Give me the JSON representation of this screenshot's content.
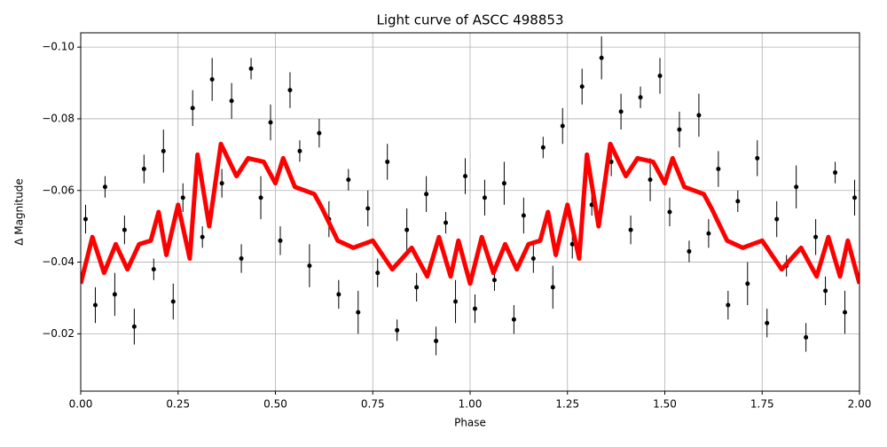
{
  "chart_data": {
    "type": "scatter",
    "title": "Light curve of ASCC 498853",
    "xlabel": "Phase",
    "ylabel": "Δ Magnitude",
    "xlim": [
      0,
      2
    ],
    "ylim": [
      -0.004,
      -0.104
    ],
    "grid": true,
    "xticks": [
      {
        "value": 0,
        "label": "0.00"
      },
      {
        "value": 0.25,
        "label": "0.25"
      },
      {
        "value": 0.5,
        "label": "0.50"
      },
      {
        "value": 0.75,
        "label": "0.75"
      },
      {
        "value": 1,
        "label": "1.00"
      },
      {
        "value": 1.25,
        "label": "1.25"
      },
      {
        "value": 1.5,
        "label": "1.50"
      },
      {
        "value": 1.75,
        "label": "1.75"
      },
      {
        "value": 2,
        "label": "2.00"
      }
    ],
    "yticks": [
      {
        "value": -0.02,
        "label": "−0.02"
      },
      {
        "value": -0.04,
        "label": "−0.04"
      },
      {
        "value": -0.06,
        "label": "−0.06"
      },
      {
        "value": -0.08,
        "label": "−0.08"
      },
      {
        "value": -0.1,
        "label": "−0.10"
      }
    ],
    "series": [
      {
        "type": "errorbar",
        "color": "#000000",
        "x": [
          0.0125,
          0.0375,
          0.0625,
          0.0875,
          0.1125,
          0.1375,
          0.1625,
          0.1875,
          0.2125,
          0.2375,
          0.2625,
          0.2875,
          0.3125,
          0.3375,
          0.3625,
          0.3875,
          0.4125,
          0.4375,
          0.4625,
          0.4875,
          0.5125,
          0.5375,
          0.5625,
          0.5875,
          0.6125,
          0.6375,
          0.6625,
          0.6875,
          0.7125,
          0.7375,
          0.7625,
          0.7875,
          0.8125,
          0.8375,
          0.8625,
          0.8875,
          0.9125,
          0.9375,
          0.9625,
          0.9875,
          1.0125,
          1.0375,
          1.0625,
          1.0875,
          1.1125,
          1.1375,
          1.1625,
          1.1875,
          1.2125,
          1.2375,
          1.2625,
          1.2875,
          1.3125,
          1.3375,
          1.3625,
          1.3875,
          1.4125,
          1.4375,
          1.4625,
          1.4875,
          1.5125,
          1.5375,
          1.5625,
          1.5875,
          1.6125,
          1.6375,
          1.6625,
          1.6875,
          1.7125,
          1.7375,
          1.7625,
          1.7875,
          1.8125,
          1.8375,
          1.8625,
          1.8875,
          1.9125,
          1.9375,
          1.9625,
          1.9875
        ],
        "values": [
          -0.052,
          -0.028,
          -0.061,
          -0.031,
          -0.049,
          -0.022,
          -0.066,
          -0.038,
          -0.071,
          -0.029,
          -0.058,
          -0.083,
          -0.047,
          -0.091,
          -0.062,
          -0.085,
          -0.041,
          -0.094,
          -0.058,
          -0.079,
          -0.046,
          -0.088,
          -0.071,
          -0.039,
          -0.076,
          -0.052,
          -0.031,
          -0.063,
          -0.026,
          -0.055,
          -0.037,
          -0.068,
          -0.021,
          -0.049,
          -0.033,
          -0.059,
          -0.018,
          -0.051,
          -0.029,
          -0.064,
          -0.027,
          -0.058,
          -0.035,
          -0.062,
          -0.024,
          -0.053,
          -0.041,
          -0.072,
          -0.033,
          -0.078,
          -0.045,
          -0.089,
          -0.056,
          -0.097,
          -0.068,
          -0.082,
          -0.049,
          -0.086,
          -0.063,
          -0.092,
          -0.054,
          -0.077,
          -0.043,
          -0.081,
          -0.048,
          -0.066,
          -0.028,
          -0.057,
          -0.034,
          -0.069,
          -0.023,
          -0.052,
          -0.039,
          -0.061,
          -0.019,
          -0.047,
          -0.032,
          -0.065,
          -0.026,
          -0.058
        ],
        "errors": [
          0.004,
          0.005,
          0.003,
          0.006,
          0.004,
          0.005,
          0.004,
          0.003,
          0.006,
          0.005,
          0.004,
          0.005,
          0.003,
          0.006,
          0.004,
          0.005,
          0.004,
          0.003,
          0.006,
          0.005,
          0.004,
          0.005,
          0.003,
          0.006,
          0.004,
          0.005,
          0.004,
          0.003,
          0.006,
          0.005,
          0.004,
          0.005,
          0.003,
          0.006,
          0.004,
          0.005,
          0.004,
          0.003,
          0.006,
          0.005,
          0.004,
          0.005,
          0.003,
          0.006,
          0.004,
          0.005,
          0.004,
          0.003,
          0.006,
          0.005,
          0.004,
          0.005,
          0.003,
          0.006,
          0.004,
          0.005,
          0.004,
          0.003,
          0.006,
          0.005,
          0.004,
          0.005,
          0.003,
          0.006,
          0.004,
          0.005,
          0.004,
          0.003,
          0.006,
          0.005,
          0.004,
          0.005,
          0.003,
          0.006,
          0.004,
          0.005,
          0.004,
          0.003,
          0.006,
          0.005
        ]
      },
      {
        "type": "line",
        "color": "#ff0000",
        "x": [
          0,
          0.03,
          0.06,
          0.09,
          0.12,
          0.15,
          0.18,
          0.2,
          0.22,
          0.25,
          0.28,
          0.3,
          0.33,
          0.36,
          0.4,
          0.43,
          0.47,
          0.5,
          0.52,
          0.55,
          0.6,
          0.62,
          0.66,
          0.7,
          0.75,
          0.8,
          0.85,
          0.89,
          0.92,
          0.95,
          0.97,
          1.0,
          1.03,
          1.06,
          1.09,
          1.12,
          1.15,
          1.18,
          1.2,
          1.22,
          1.25,
          1.28,
          1.3,
          1.33,
          1.36,
          1.4,
          1.43,
          1.47,
          1.5,
          1.52,
          1.55,
          1.6,
          1.62,
          1.66,
          1.7,
          1.75,
          1.8,
          1.85,
          1.89,
          1.92,
          1.95,
          1.97,
          2.0
        ],
        "values": [
          -0.034,
          -0.047,
          -0.037,
          -0.045,
          -0.038,
          -0.045,
          -0.046,
          -0.054,
          -0.042,
          -0.056,
          -0.041,
          -0.07,
          -0.05,
          -0.073,
          -0.064,
          -0.069,
          -0.068,
          -0.062,
          -0.069,
          -0.061,
          -0.059,
          -0.055,
          -0.046,
          -0.044,
          -0.046,
          -0.038,
          -0.044,
          -0.036,
          -0.047,
          -0.036,
          -0.046,
          -0.034,
          -0.047,
          -0.037,
          -0.045,
          -0.038,
          -0.045,
          -0.046,
          -0.054,
          -0.042,
          -0.056,
          -0.041,
          -0.07,
          -0.05,
          -0.073,
          -0.064,
          -0.069,
          -0.068,
          -0.062,
          -0.069,
          -0.061,
          -0.059,
          -0.055,
          -0.046,
          -0.044,
          -0.046,
          -0.038,
          -0.044,
          -0.036,
          -0.047,
          -0.036,
          -0.046,
          -0.034
        ]
      }
    ]
  }
}
